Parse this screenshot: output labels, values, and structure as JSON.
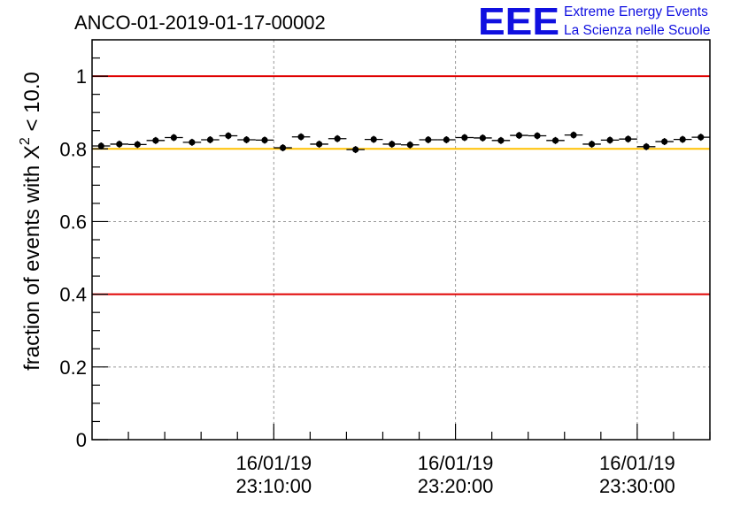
{
  "chart_data": {
    "type": "scatter",
    "title": "ANCO-01-2019-01-17-00002",
    "ylabel_prefix": "fraction of events with ",
    "ylabel_symbol": "X",
    "ylabel_exp": "2",
    "ylabel_suffix": " < 10.0",
    "ylim": [
      0,
      1.1
    ],
    "yticks": [
      0,
      0.2,
      0.4,
      0.6,
      0.8,
      1
    ],
    "ytick_labels": [
      "0",
      "0.2",
      "0.4",
      "0.6",
      "0.8",
      "1"
    ],
    "xlim_minutes": [
      -1.5,
      32.5
    ],
    "xtick_minutes": [
      8.5,
      18.5,
      28.5
    ],
    "xtick_labels": [
      {
        "date": "16/01/19",
        "time": "23:10:00"
      },
      {
        "date": "16/01/19",
        "time": "23:20:00"
      },
      {
        "date": "16/01/19",
        "time": "23:30:00"
      }
    ],
    "grid": true,
    "reference_lines": [
      {
        "y": 1.0,
        "color": "#e00000"
      },
      {
        "y": 0.8,
        "color": "#ffc000"
      },
      {
        "y": 0.4,
        "color": "#e00000"
      }
    ],
    "points": [
      {
        "x": -1,
        "y": 0.808
      },
      {
        "x": 0,
        "y": 0.813
      },
      {
        "x": 1,
        "y": 0.812
      },
      {
        "x": 2,
        "y": 0.823
      },
      {
        "x": 3,
        "y": 0.831
      },
      {
        "x": 4,
        "y": 0.818
      },
      {
        "x": 5,
        "y": 0.825
      },
      {
        "x": 6,
        "y": 0.836
      },
      {
        "x": 7,
        "y": 0.825
      },
      {
        "x": 8,
        "y": 0.824
      },
      {
        "x": 9,
        "y": 0.803
      },
      {
        "x": 10,
        "y": 0.833
      },
      {
        "x": 11,
        "y": 0.813
      },
      {
        "x": 12,
        "y": 0.828
      },
      {
        "x": 13,
        "y": 0.798
      },
      {
        "x": 14,
        "y": 0.826
      },
      {
        "x": 15,
        "y": 0.813
      },
      {
        "x": 16,
        "y": 0.811
      },
      {
        "x": 17,
        "y": 0.825
      },
      {
        "x": 18,
        "y": 0.825
      },
      {
        "x": 19,
        "y": 0.831
      },
      {
        "x": 20,
        "y": 0.83
      },
      {
        "x": 21,
        "y": 0.823
      },
      {
        "x": 22,
        "y": 0.837
      },
      {
        "x": 23,
        "y": 0.836
      },
      {
        "x": 24,
        "y": 0.823
      },
      {
        "x": 25,
        "y": 0.838
      },
      {
        "x": 26,
        "y": 0.813
      },
      {
        "x": 27,
        "y": 0.824
      },
      {
        "x": 28,
        "y": 0.827
      },
      {
        "x": 29,
        "y": 0.806
      },
      {
        "x": 30,
        "y": 0.82
      },
      {
        "x": 31,
        "y": 0.826
      },
      {
        "x": 32,
        "y": 0.832
      }
    ],
    "colors": {
      "marker": "#000000",
      "grid": "#9a9a9a",
      "logo": "#1010e0"
    }
  },
  "logo": {
    "letters": "EEE",
    "line1": "Extreme Energy Events",
    "line2": "La Scienza nelle Scuole"
  }
}
